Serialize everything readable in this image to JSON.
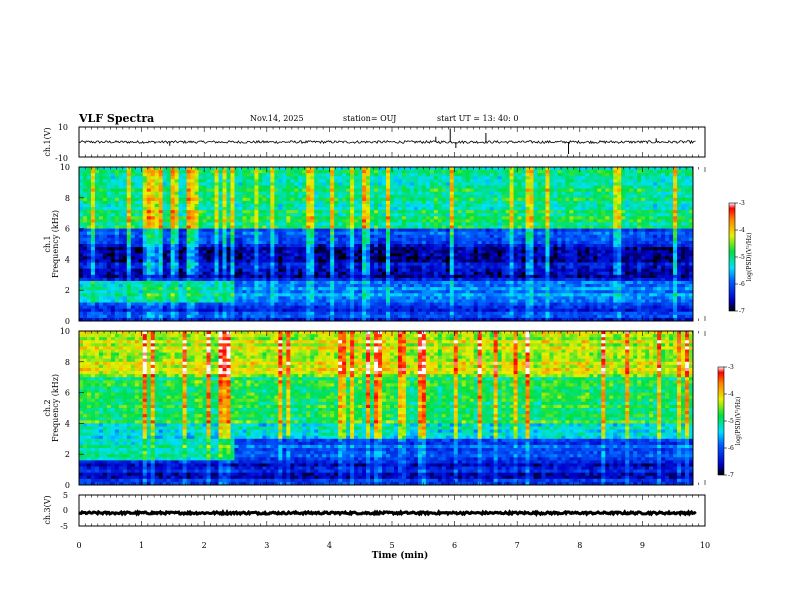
{
  "header": {
    "title": "VLF Spectra",
    "date": "Nov.14, 2025",
    "station": "station= OUJ",
    "start": "start  UT =  13: 40: 0"
  },
  "chart_data": [
    {
      "type": "line",
      "name": "ch1-waveform",
      "ylabel": "ch.1(V)",
      "ylim": [
        -10,
        10
      ],
      "yticks": [
        "10",
        "-10"
      ],
      "baseline": 0,
      "noise": 0.9,
      "spikes": [
        {
          "x": 1.45,
          "y": -2.5
        },
        {
          "x": 5.7,
          "y": 3.5
        },
        {
          "x": 5.93,
          "y": 9.0
        },
        {
          "x": 6.02,
          "y": -4.0
        },
        {
          "x": 6.5,
          "y": 6.0
        },
        {
          "x": 7.82,
          "y": -8.0
        },
        {
          "x": 9.22,
          "y": 2.5
        }
      ]
    },
    {
      "type": "heatmap",
      "name": "ch1-spectrogram",
      "ylabel": "Frequency (kHz)",
      "channel_label": "ch.1",
      "ylim": [
        0,
        10
      ],
      "yticks": [
        "0",
        "2",
        "4",
        "6",
        "8",
        "10"
      ],
      "colorbar": {
        "label": "log(PSD)(V²/Hz)",
        "range": [
          -7,
          -3
        ],
        "ticks": [
          "-3",
          "-4",
          "-5",
          "-6",
          "-7"
        ]
      }
    },
    {
      "type": "heatmap",
      "name": "ch2-spectrogram",
      "ylabel": "Frequency (kHz)",
      "channel_label": "ch.2",
      "ylim": [
        0,
        10
      ],
      "yticks": [
        "0",
        "2",
        "4",
        "6",
        "8",
        "10"
      ],
      "colorbar": {
        "label": "log(PSD)(V²/Hz)",
        "range": [
          -7,
          -3
        ],
        "ticks": [
          "-3",
          "-4",
          "-5",
          "-6",
          "-7"
        ]
      }
    },
    {
      "type": "line",
      "name": "ch3-waveform",
      "ylabel": "ch.3(V)",
      "ylim": [
        -5,
        5
      ],
      "yticks": [
        "5",
        "0",
        "-5"
      ],
      "baseline": -0.8,
      "noise": 0.35,
      "spikes": []
    }
  ],
  "xaxis": {
    "label": "Time (min)",
    "range": [
      0,
      10
    ],
    "ticks": [
      "0",
      "1",
      "2",
      "3",
      "4",
      "5",
      "6",
      "7",
      "8",
      "9",
      "10"
    ]
  }
}
